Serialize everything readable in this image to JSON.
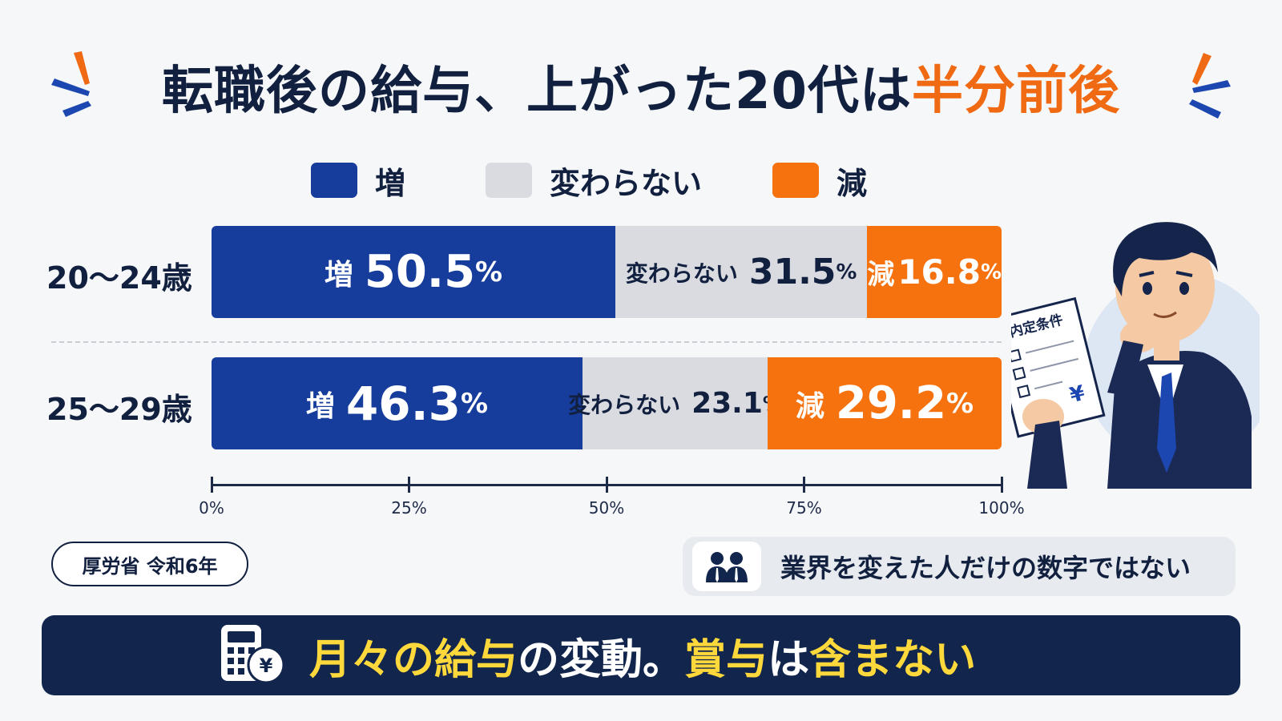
{
  "title": {
    "main": "転職後の給与、上がった20代は",
    "highlight": "半分前後"
  },
  "colors": {
    "increase": "#163c9c",
    "same": "#d9dbe0",
    "decrease": "#f5720f",
    "navy": "#12203f",
    "banner": "#12254c",
    "banner_highlight": "#ffd93b"
  },
  "legend": [
    {
      "label": "増",
      "color": "#163c9c"
    },
    {
      "label": "変わらない",
      "color": "#d9dbe0"
    },
    {
      "label": "減",
      "color": "#f5720f"
    }
  ],
  "chart_data": {
    "type": "bar",
    "orientation": "horizontal",
    "stacked": true,
    "categories": [
      "20〜24歳",
      "25〜29歳"
    ],
    "series": [
      {
        "name": "増",
        "values": [
          50.5,
          46.3
        ]
      },
      {
        "name": "変わらない",
        "values": [
          31.5,
          23.1
        ]
      },
      {
        "name": "減",
        "values": [
          16.8,
          29.2
        ]
      }
    ],
    "value_suffix": "%",
    "xlim": [
      0,
      100
    ],
    "xticks": [
      "0%",
      "25%",
      "50%",
      "75%",
      "100%"
    ],
    "tick_values": [
      0,
      25,
      50,
      75,
      100
    ],
    "legend_position": "top"
  },
  "illustration": {
    "document_title": "内定条件",
    "currency_symbol": "¥"
  },
  "source": "厚労省 令和6年",
  "note": {
    "icon": "people-icon",
    "text": "業界を変えた人だけの数字ではない"
  },
  "banner": {
    "icon": "calculator-yen-icon",
    "parts": [
      {
        "text": "月々の",
        "highlight": true
      },
      {
        "text": "給与",
        "highlight": true
      },
      {
        "text": "の変動。",
        "highlight": false
      },
      {
        "text": "賞与",
        "highlight": true
      },
      {
        "text": "は",
        "highlight": false
      },
      {
        "text": "含まない",
        "highlight": true
      }
    ]
  }
}
